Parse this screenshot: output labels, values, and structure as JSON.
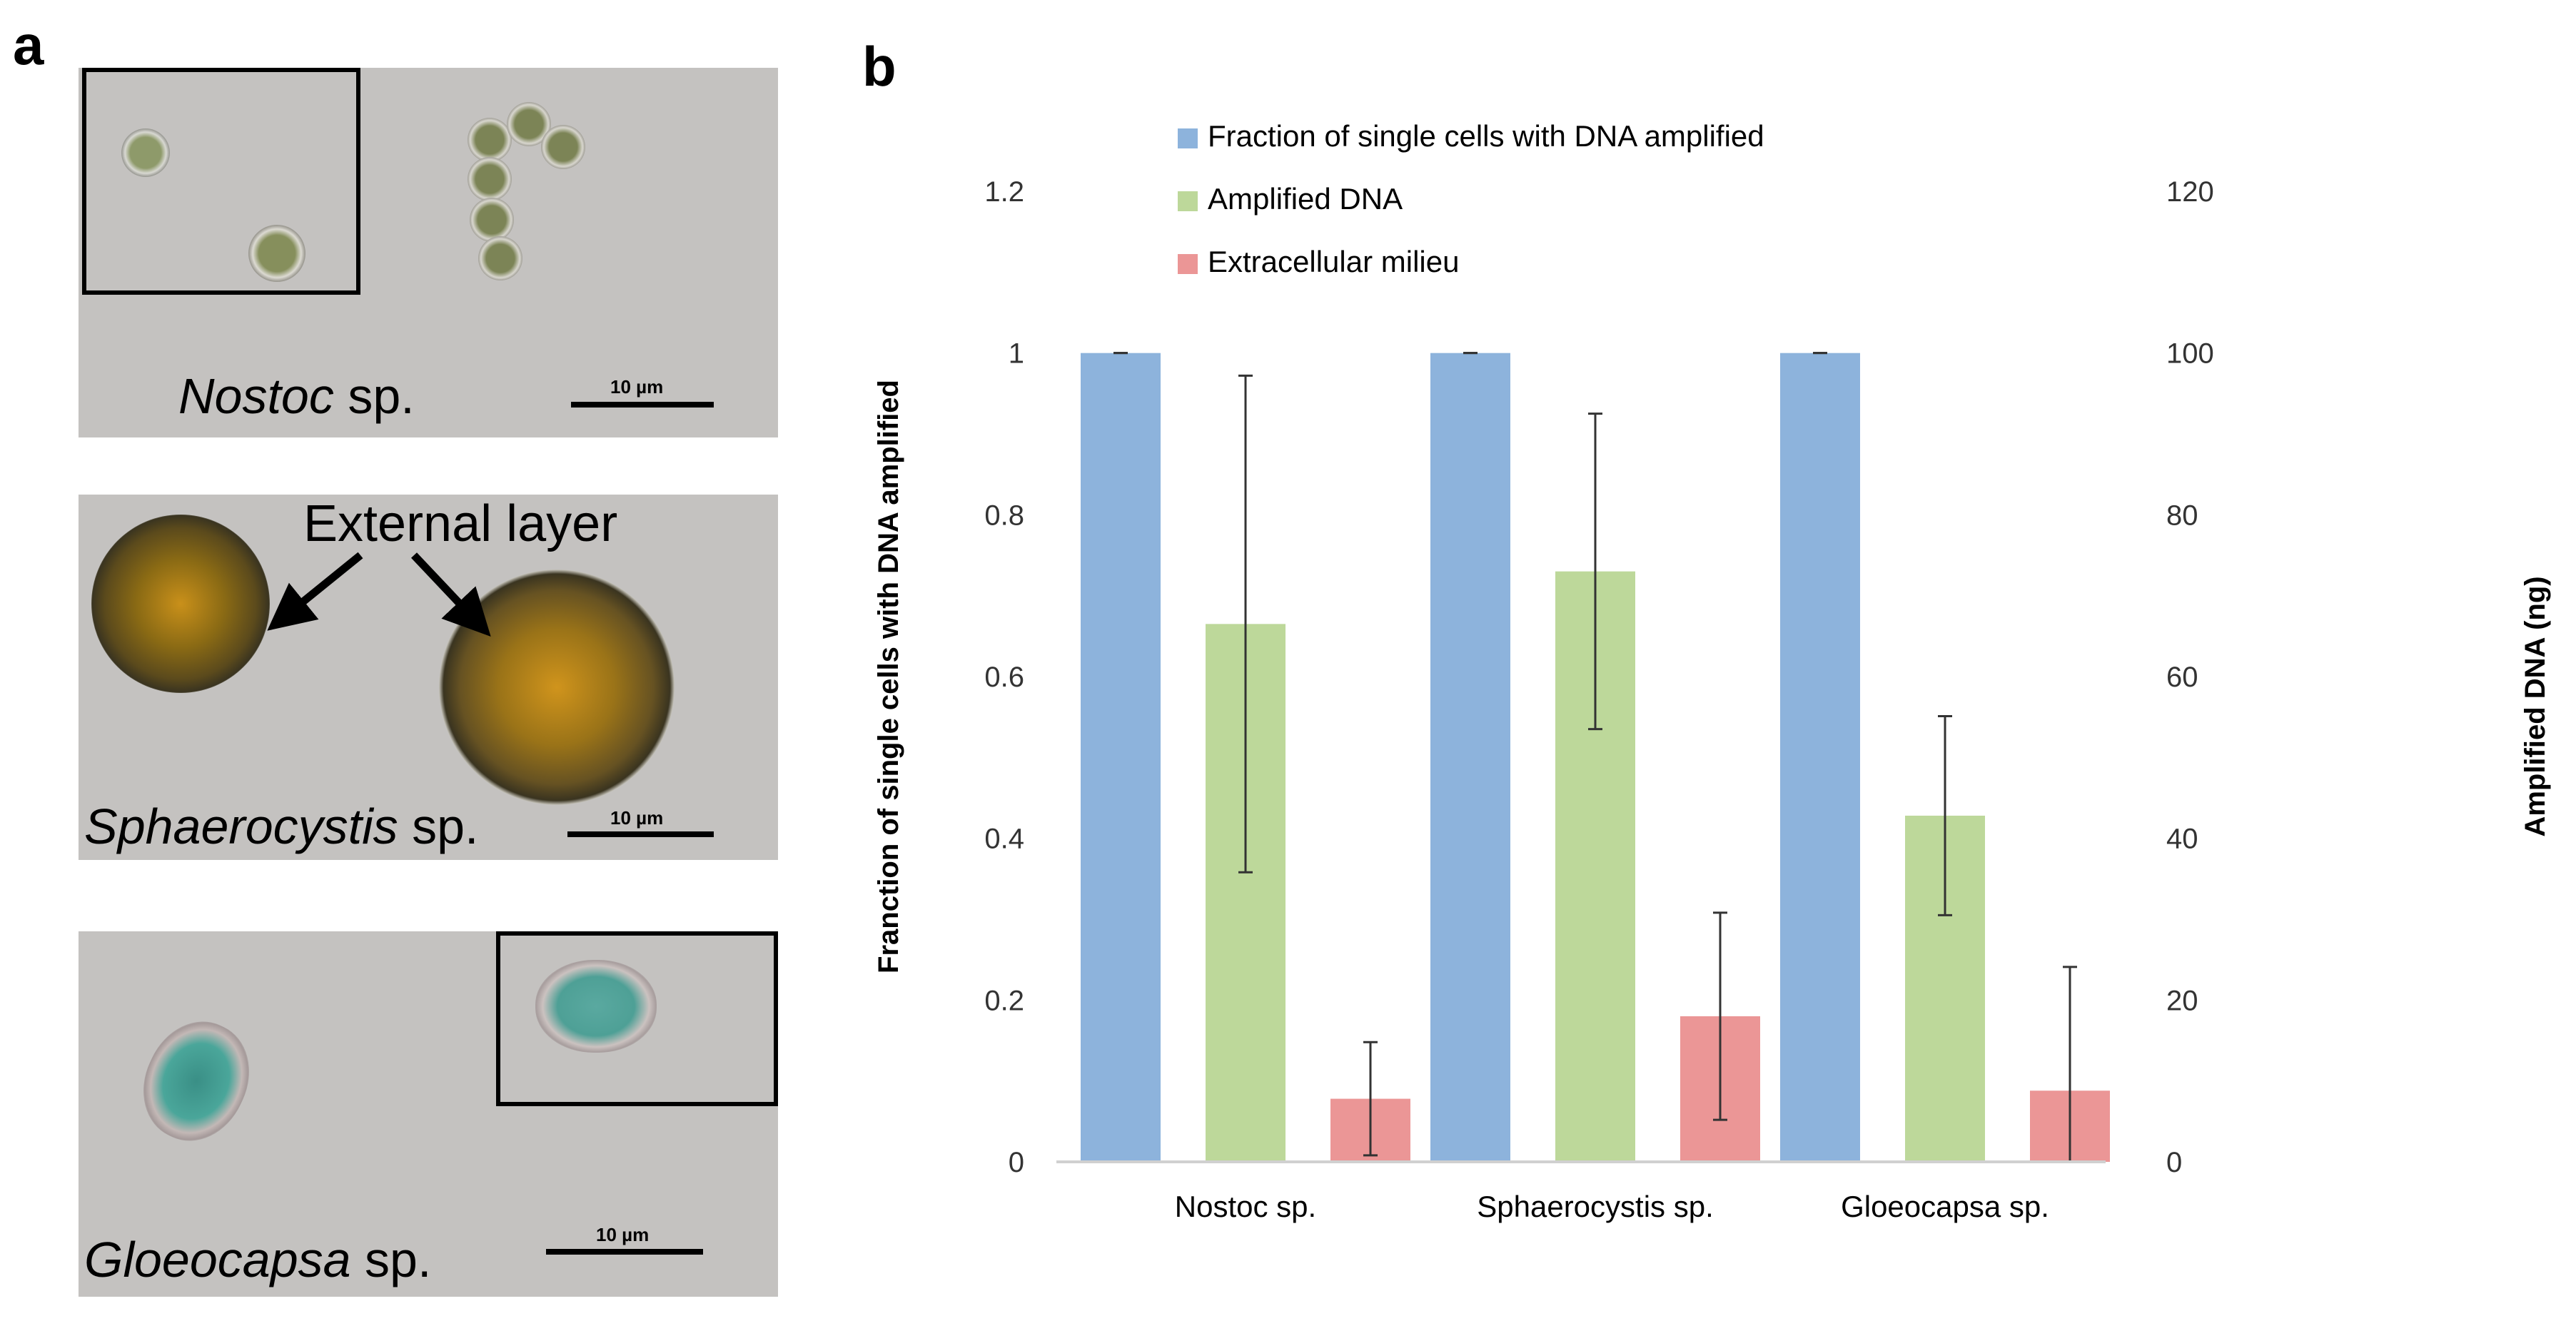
{
  "panel_a": {
    "letter": "a",
    "images": [
      {
        "species_name": "Nostoc",
        "species_suffix": " sp.",
        "scale_label": "10 µm"
      },
      {
        "species_name": "Sphaerocystis",
        "species_suffix": " sp.",
        "scale_label": "10 µm",
        "annotation": "External layer"
      },
      {
        "species_name": "Gloeocapsa",
        "species_suffix": " sp.",
        "scale_label": "10 µm"
      }
    ]
  },
  "panel_b": {
    "letter": "b"
  },
  "chart_data": {
    "type": "bar",
    "categories": [
      "Nostoc sp.",
      "Sphaerocystis sp.",
      "Gloeocapsa sp."
    ],
    "series": [
      {
        "name": "Fraction of single cells with DNA amplified",
        "axis": "left",
        "color": "#8db3dc",
        "values": [
          1.0,
          1.0,
          1.0
        ],
        "errors": [
          0,
          0,
          0
        ]
      },
      {
        "name": "Amplified DNA",
        "axis": "right",
        "color": "#bdd89a",
        "values": [
          66.5,
          73.0,
          42.8
        ],
        "errors": [
          30.7,
          19.5,
          12.3
        ]
      },
      {
        "name": "Extracellular milieu",
        "axis": "right",
        "color": "#eb9696",
        "values": [
          7.8,
          18.0,
          8.8
        ],
        "errors": [
          7.0,
          12.8,
          15.3
        ]
      }
    ],
    "ylabel": "Franction of single cells with DNA amplified",
    "y2label": "Amplified DNA (ng)",
    "ylim": [
      0,
      1.2
    ],
    "y2lim": [
      0,
      120
    ],
    "yticks": [
      "0",
      "0.2",
      "0.4",
      "0.6",
      "0.8",
      "1",
      "1.2"
    ],
    "y2ticks": [
      "0",
      "20",
      "40",
      "60",
      "80",
      "100",
      "120"
    ],
    "legend_position": "top-left"
  }
}
